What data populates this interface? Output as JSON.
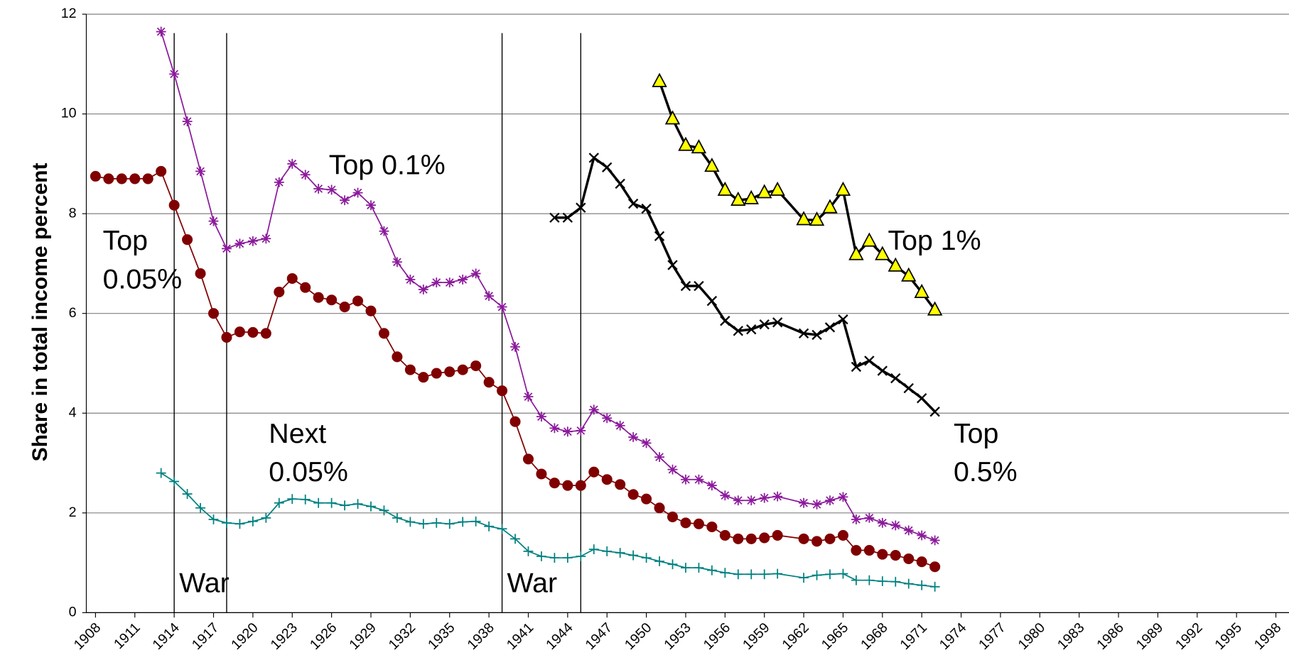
{
  "chart_data": {
    "type": "line",
    "y_label": "Share in total income percent",
    "x": [
      1908,
      1909,
      1910,
      1911,
      1912,
      1913,
      1914,
      1915,
      1916,
      1917,
      1918,
      1919,
      1920,
      1921,
      1922,
      1923,
      1924,
      1925,
      1926,
      1927,
      1928,
      1929,
      1930,
      1931,
      1932,
      1933,
      1934,
      1935,
      1936,
      1937,
      1938,
      1939,
      1940,
      1941,
      1942,
      1943,
      1944,
      1945,
      1946,
      1947,
      1948,
      1949,
      1950,
      1951,
      1952,
      1953,
      1954,
      1955,
      1956,
      1957,
      1958,
      1959,
      1960,
      1962,
      1963,
      1964,
      1965,
      1966,
      1967,
      1968,
      1969,
      1970,
      1971,
      1972
    ],
    "series": [
      {
        "label": [
          "Top",
          "0.05%"
        ],
        "color": "#800000",
        "marker": "circle",
        "values": [
          8.75,
          8.7,
          8.7,
          8.7,
          8.7,
          8.85,
          8.17,
          7.48,
          6.8,
          6.0,
          5.52,
          5.63,
          5.62,
          5.6,
          6.43,
          6.7,
          6.52,
          6.32,
          6.27,
          6.13,
          6.25,
          6.05,
          5.6,
          5.13,
          4.87,
          4.72,
          4.8,
          4.83,
          4.87,
          4.95,
          4.62,
          4.45,
          3.83,
          3.08,
          2.78,
          2.6,
          2.55,
          2.55,
          2.82,
          2.67,
          2.57,
          2.37,
          2.28,
          2.1,
          1.92,
          1.8,
          1.78,
          1.72,
          1.55,
          1.48,
          1.48,
          1.5,
          1.55,
          1.48,
          1.43,
          1.48,
          1.55,
          1.25,
          1.25,
          1.17,
          1.15,
          1.08,
          1.02,
          0.92
        ]
      },
      {
        "label": [
          "Top 0.1%"
        ],
        "color": "#8b1a9b",
        "marker": "asterisk",
        "values": [
          null,
          null,
          null,
          null,
          null,
          11.65,
          10.8,
          9.85,
          8.85,
          7.85,
          7.3,
          7.4,
          7.45,
          7.5,
          8.63,
          9.0,
          8.78,
          8.5,
          8.48,
          8.27,
          8.42,
          8.17,
          7.65,
          7.03,
          6.68,
          6.48,
          6.62,
          6.62,
          6.68,
          6.8,
          6.35,
          6.13,
          5.33,
          4.33,
          3.93,
          3.7,
          3.63,
          3.65,
          4.07,
          3.9,
          3.75,
          3.52,
          3.4,
          3.12,
          2.87,
          2.67,
          2.67,
          2.55,
          2.35,
          2.25,
          2.25,
          2.3,
          2.33,
          2.2,
          2.17,
          2.25,
          2.32,
          1.87,
          1.9,
          1.8,
          1.75,
          1.65,
          1.55,
          1.45
        ]
      },
      {
        "label": [
          "Next",
          "0.05%"
        ],
        "color": "#008080",
        "marker": "plus",
        "values": [
          null,
          null,
          null,
          null,
          null,
          2.8,
          2.63,
          2.38,
          2.1,
          1.87,
          1.8,
          1.78,
          1.83,
          1.9,
          2.2,
          2.28,
          2.27,
          2.2,
          2.2,
          2.15,
          2.18,
          2.13,
          2.05,
          1.9,
          1.82,
          1.78,
          1.8,
          1.78,
          1.82,
          1.83,
          1.73,
          1.68,
          1.48,
          1.23,
          1.13,
          1.1,
          1.1,
          1.13,
          1.27,
          1.23,
          1.2,
          1.15,
          1.1,
          1.03,
          0.97,
          0.9,
          0.9,
          0.85,
          0.8,
          0.77,
          0.77,
          0.77,
          0.78,
          0.7,
          0.75,
          0.77,
          0.78,
          0.65,
          0.65,
          0.63,
          0.62,
          0.58,
          0.55,
          0.52
        ]
      },
      {
        "label": [
          "Top",
          "0.5%"
        ],
        "color": "#000000",
        "marker": "x",
        "values": [
          null,
          null,
          null,
          null,
          null,
          null,
          null,
          null,
          null,
          null,
          null,
          null,
          null,
          null,
          null,
          null,
          null,
          null,
          null,
          null,
          null,
          null,
          null,
          null,
          null,
          null,
          null,
          null,
          null,
          null,
          null,
          null,
          null,
          null,
          null,
          7.92,
          7.92,
          8.12,
          9.12,
          8.93,
          8.6,
          8.2,
          8.1,
          7.55,
          6.97,
          6.55,
          6.55,
          6.25,
          5.85,
          5.65,
          5.68,
          5.78,
          5.82,
          5.6,
          5.57,
          5.72,
          5.88,
          4.93,
          5.05,
          4.85,
          4.7,
          4.5,
          4.3,
          4.03
        ]
      },
      {
        "label": [
          "Top 1%"
        ],
        "color": "#000000",
        "marker": "triangle",
        "marker_fill": "#ffff00",
        "values": [
          null,
          null,
          null,
          null,
          null,
          null,
          null,
          null,
          null,
          null,
          null,
          null,
          null,
          null,
          null,
          null,
          null,
          null,
          null,
          null,
          null,
          null,
          null,
          null,
          null,
          null,
          null,
          null,
          null,
          null,
          null,
          null,
          null,
          null,
          null,
          null,
          null,
          null,
          null,
          null,
          null,
          null,
          null,
          10.65,
          9.9,
          9.37,
          9.32,
          8.95,
          8.47,
          8.27,
          8.3,
          8.42,
          8.47,
          7.88,
          7.87,
          8.12,
          8.47,
          7.18,
          7.45,
          7.18,
          6.95,
          6.75,
          6.42,
          6.07
        ]
      }
    ],
    "events": [
      {
        "label": "War",
        "start": 1914,
        "end": 1918
      },
      {
        "label": "War",
        "start": 1939,
        "end": 1945
      }
    ],
    "xlim": [
      1907.3,
      1999
    ],
    "xticks": [
      1908,
      1911,
      1914,
      1917,
      1920,
      1923,
      1926,
      1929,
      1932,
      1935,
      1938,
      1941,
      1944,
      1947,
      1950,
      1953,
      1956,
      1959,
      1962,
      1965,
      1968,
      1971,
      1974,
      1977,
      1980,
      1983,
      1986,
      1989,
      1992,
      1995,
      1998
    ],
    "ylim": [
      0,
      12
    ],
    "yticks": [
      0,
      2,
      4,
      6,
      8,
      10,
      12
    ],
    "grid": true
  }
}
